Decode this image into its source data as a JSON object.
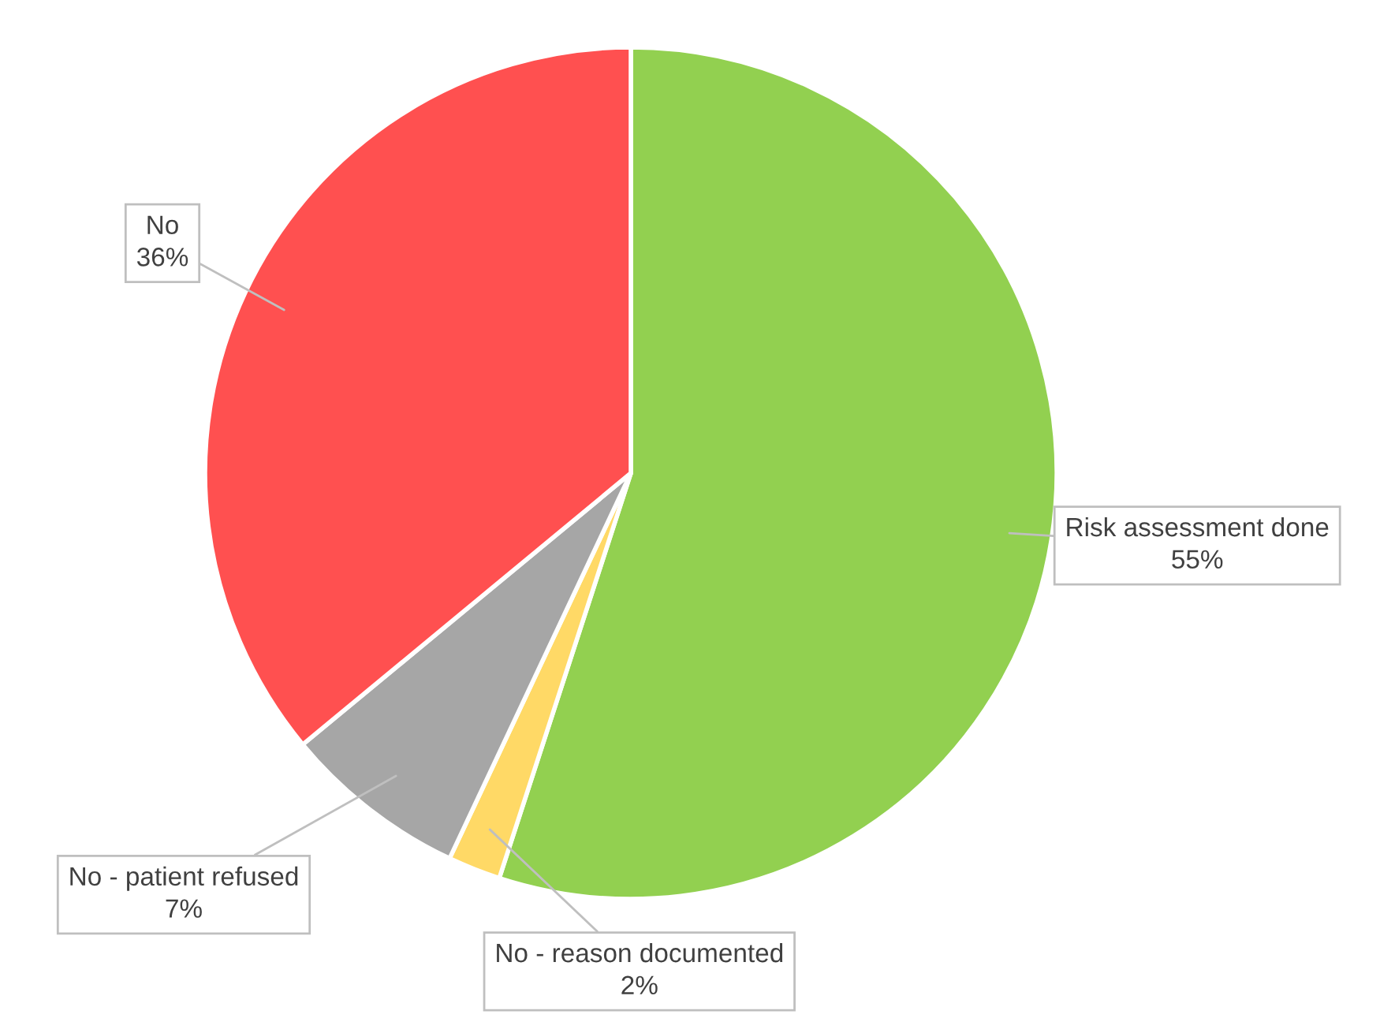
{
  "chart_data": {
    "type": "pie",
    "categories": [
      "Risk assessment done",
      "No - reason documented",
      "No - patient refused",
      "No"
    ],
    "values": [
      55,
      2,
      7,
      36
    ],
    "value_labels": [
      "55%",
      "2%",
      "7%",
      "36%"
    ],
    "colors": [
      "#92d050",
      "#ffd966",
      "#a6a6a6",
      "#ff5050"
    ]
  }
}
